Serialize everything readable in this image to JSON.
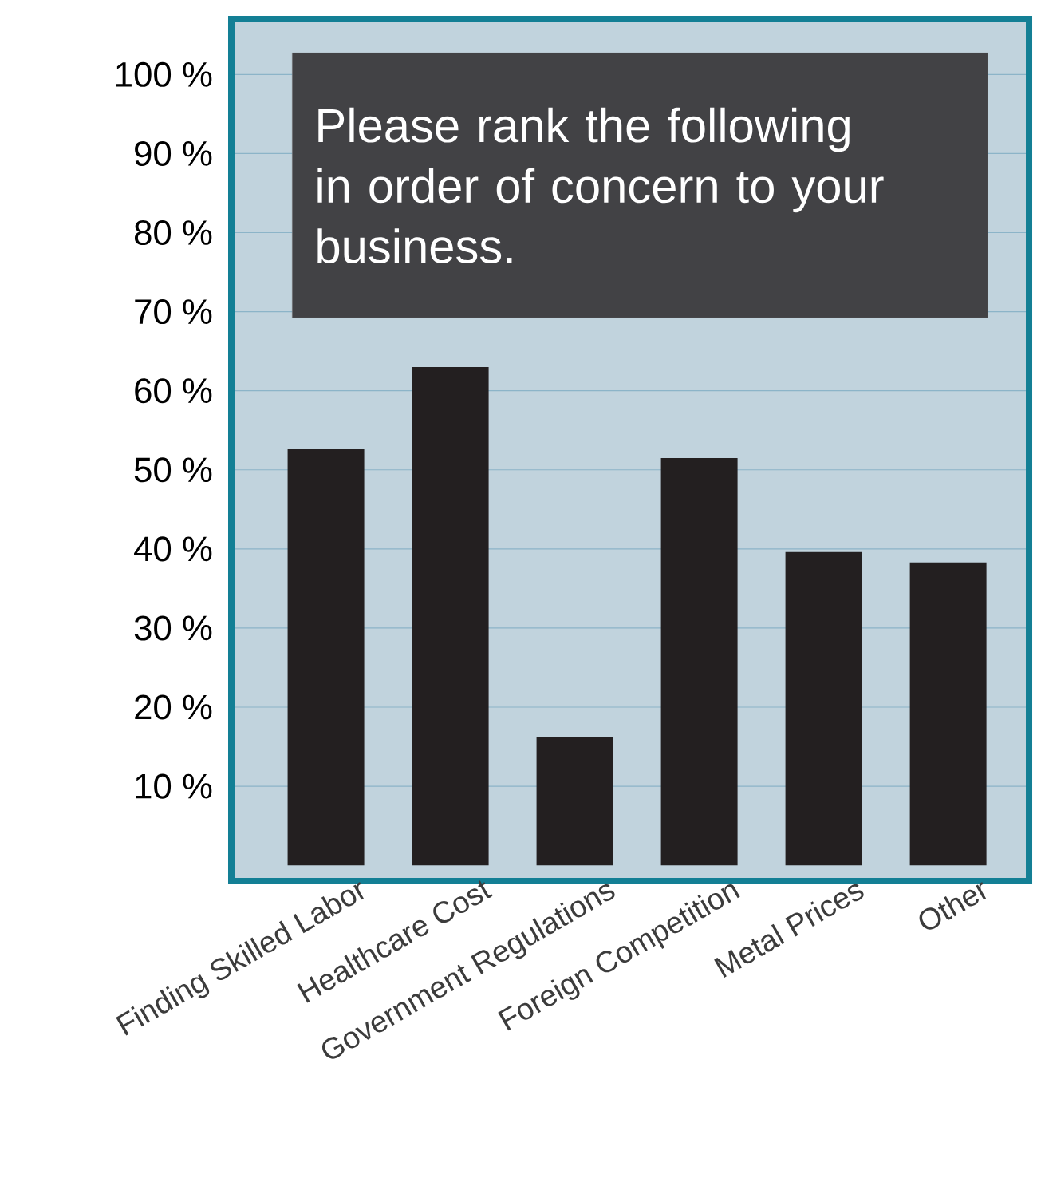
{
  "chart_data": {
    "type": "bar",
    "title": "Please rank the following in order of concern to your business.",
    "categories": [
      "Finding Skilled Labor",
      "Healthcare Cost",
      "Government Regulations",
      "Foreign Competition",
      "Metal Prices",
      "Other"
    ],
    "values": [
      52.6,
      63.0,
      16.2,
      51.5,
      39.6,
      38.3
    ],
    "color": "#231f20",
    "ylim": [
      -2,
      107
    ],
    "yticks": [
      {
        "value": 10,
        "label": "10 %"
      },
      {
        "value": 20,
        "label": "20 %"
      },
      {
        "value": 30,
        "label": "30 %"
      },
      {
        "value": 40,
        "label": "40 %"
      },
      {
        "value": 50,
        "label": "50 %"
      },
      {
        "value": 60,
        "label": "60 %"
      },
      {
        "value": 70,
        "label": "70 %"
      },
      {
        "value": 80,
        "label": "80 %"
      },
      {
        "value": 90,
        "label": "90 %"
      },
      {
        "value": 100,
        "label": "100 %"
      }
    ],
    "grid": "y"
  }
}
